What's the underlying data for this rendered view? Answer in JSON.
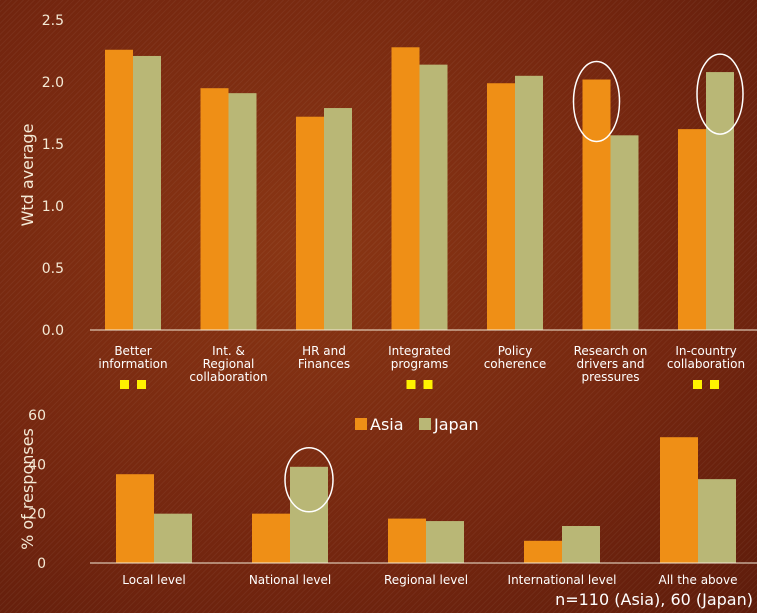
{
  "colors": {
    "asia": "#ef8f16",
    "japan": "#b9b776",
    "marker": "#fff200",
    "circle": "#ffffff",
    "axis": "#f4ead6"
  },
  "legend": [
    "Asia",
    "Japan"
  ],
  "note": "n=110 (Asia), 60 (Japan)",
  "chart_data": [
    {
      "type": "bar",
      "ylabel": "Wtd average",
      "ylim": [
        0,
        2.5
      ],
      "yticks": [
        "0.0",
        "0.5",
        "1.0",
        "1.5",
        "2.0",
        "2.5"
      ],
      "categories": [
        [
          "Better",
          "information"
        ],
        [
          "Int. &",
          "Regional",
          "collaboration"
        ],
        [
          "HR and",
          "Finances"
        ],
        [
          "Integrated",
          "programs"
        ],
        [
          "Policy",
          "coherence"
        ],
        [
          "Research on",
          "drivers and",
          "pressures"
        ],
        [
          "In-country",
          "collaboration"
        ]
      ],
      "series": [
        {
          "name": "Asia",
          "values": [
            2.26,
            1.95,
            1.72,
            2.28,
            1.99,
            2.02,
            1.62
          ]
        },
        {
          "name": "Japan",
          "values": [
            2.21,
            1.91,
            1.79,
            2.14,
            2.05,
            1.57,
            2.08
          ]
        }
      ],
      "marked_categories": [
        0,
        3,
        6
      ],
      "circled": [
        {
          "category": 5,
          "series": "Asia"
        },
        {
          "category": 6,
          "series": "Japan"
        }
      ]
    },
    {
      "type": "bar",
      "ylabel": "% of responses",
      "ylim": [
        0,
        60
      ],
      "yticks": [
        "0",
        "20",
        "40",
        "60"
      ],
      "categories": [
        [
          "Local level"
        ],
        [
          "National level"
        ],
        [
          "Regional level"
        ],
        [
          "International level"
        ],
        [
          "All the above"
        ]
      ],
      "series": [
        {
          "name": "Asia",
          "values": [
            36,
            20,
            18,
            9,
            51
          ]
        },
        {
          "name": "Japan",
          "values": [
            20,
            39,
            17,
            15,
            34
          ]
        }
      ],
      "circled": [
        {
          "category": 1,
          "series": "Japan"
        }
      ]
    }
  ]
}
